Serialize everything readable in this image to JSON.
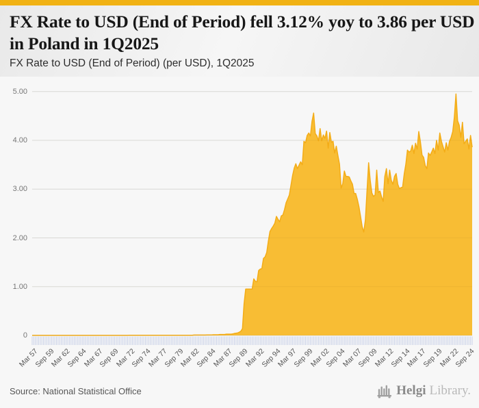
{
  "colors": {
    "brand_bar": "#F1B214"
  },
  "header": {
    "title": "FX Rate to USD (End of Period) fell 3.12% yoy to 3.86 per USD in Poland in 1Q2025",
    "subtitle": "FX Rate to USD (End of Period) (per USD), 1Q2025"
  },
  "chart_data": {
    "type": "area",
    "title": "FX Rate to USD (End of Period) (per USD), 1Q2025",
    "series_name": "FX Rate to USD (End of Period), Poland",
    "unit": "per USD",
    "frequency": "quarterly",
    "x_start": "Mar 57",
    "x_end": "Mar 25",
    "ylim": [
      0,
      5
    ],
    "grid": true,
    "legend_position": "none",
    "y_ticks": [
      0,
      1,
      2,
      3,
      4,
      5
    ],
    "y_ticklabels": [
      "0",
      "1.00",
      "2.00",
      "3.00",
      "4.00",
      "5.00"
    ],
    "label_every": 10,
    "x_ticklabels": [
      "Mar 57",
      "Sep 59",
      "Mar 62",
      "Sep 64",
      "Mar 67",
      "Sep 69",
      "Mar 72",
      "Sep 74",
      "Mar 77",
      "Sep 79",
      "Mar 82",
      "Sep 84",
      "Mar 87",
      "Sep 89",
      "Mar 92",
      "Sep 94",
      "Mar 97",
      "Sep 99",
      "Mar 02",
      "Sep 04",
      "Mar 07",
      "Sep 09",
      "Mar 12",
      "Sep 14",
      "Mar 17",
      "Sep 19",
      "Mar 22",
      "Sep 24"
    ],
    "values": [
      0.0024,
      0.0024,
      0.0024,
      0.0024,
      0.0024,
      0.0024,
      0.0024,
      0.0024,
      0.0024,
      0.0024,
      0.0024,
      0.0024,
      0.0024,
      0.0024,
      0.0024,
      0.0024,
      0.0024,
      0.0024,
      0.0024,
      0.0024,
      0.0024,
      0.0024,
      0.0024,
      0.0024,
      0.0024,
      0.0024,
      0.0024,
      0.0024,
      0.0024,
      0.0024,
      0.0024,
      0.0024,
      0.0024,
      0.0024,
      0.0024,
      0.0024,
      0.0024,
      0.0024,
      0.0024,
      0.0024,
      0.0024,
      0.0024,
      0.0024,
      0.0024,
      0.0024,
      0.0024,
      0.0024,
      0.0024,
      0.0024,
      0.0024,
      0.0024,
      0.0024,
      0.0024,
      0.0024,
      0.0024,
      0.0024,
      0.0025,
      0.0025,
      0.0025,
      0.0025,
      0.0027,
      0.0027,
      0.0027,
      0.0027,
      0.0033,
      0.0033,
      0.0033,
      0.0033,
      0.0033,
      0.0033,
      0.0033,
      0.0033,
      0.0033,
      0.0033,
      0.0033,
      0.0033,
      0.0033,
      0.0033,
      0.0033,
      0.0033,
      0.0032,
      0.0032,
      0.0032,
      0.0032,
      0.003,
      0.003,
      0.003,
      0.003,
      0.003,
      0.003,
      0.003,
      0.003,
      0.003,
      0.003,
      0.003,
      0.003,
      0.0034,
      0.0034,
      0.0034,
      0.0034,
      0.008,
      0.008,
      0.008,
      0.008,
      0.0091,
      0.0091,
      0.0091,
      0.0091,
      0.0113,
      0.0113,
      0.0113,
      0.0113,
      0.0147,
      0.0147,
      0.0147,
      0.0147,
      0.0198,
      0.0198,
      0.0198,
      0.0198,
      0.0265,
      0.0265,
      0.0265,
      0.0265,
      0.031,
      0.04,
      0.045,
      0.0503,
      0.066,
      0.085,
      0.14,
      0.65,
      0.95,
      0.95,
      0.95,
      0.95,
      0.95,
      1.16,
      1.11,
      1.1,
      1.33,
      1.36,
      1.37,
      1.58,
      1.61,
      1.7,
      1.93,
      2.13,
      2.19,
      2.24,
      2.3,
      2.44,
      2.38,
      2.33,
      2.45,
      2.47,
      2.58,
      2.72,
      2.8,
      2.88,
      3.08,
      3.28,
      3.43,
      3.52,
      3.42,
      3.49,
      3.56,
      3.5,
      3.98,
      3.95,
      4.1,
      4.15,
      4.09,
      4.39,
      4.56,
      4.14,
      4.09,
      3.99,
      4.24,
      3.99,
      4.11,
      4.04,
      4.19,
      3.84,
      4.16,
      3.96,
      3.98,
      3.74,
      3.88,
      3.69,
      3.51,
      3.02,
      3.11,
      3.37,
      3.26,
      3.26,
      3.25,
      3.17,
      3.1,
      2.91,
      2.91,
      2.79,
      2.64,
      2.44,
      2.23,
      2.12,
      2.37,
      2.96,
      3.54,
      3.17,
      2.92,
      2.85,
      2.88,
      3.39,
      2.93,
      2.96,
      2.84,
      2.75,
      3.26,
      3.42,
      3.11,
      3.39,
      3.18,
      3.1,
      3.26,
      3.32,
      3.1,
      3.01,
      3.03,
      3.04,
      3.31,
      3.51,
      3.8,
      3.76,
      3.78,
      3.9,
      3.73,
      3.94,
      3.82,
      4.18,
      3.97,
      3.7,
      3.65,
      3.48,
      3.42,
      3.74,
      3.69,
      3.76,
      3.84,
      3.73,
      4.0,
      3.8,
      4.15,
      3.98,
      3.87,
      3.76,
      3.95,
      3.8,
      3.98,
      4.06,
      4.18,
      4.48,
      4.95,
      4.4,
      4.31,
      4.06,
      4.37,
      3.93,
      3.98,
      4.03,
      3.82,
      4.1,
      3.86
    ],
    "last_value": 3.86,
    "yoy_change_pct": -3.12,
    "colors": {
      "area_fill": "#F8BD34",
      "area_stroke": "#F3AC17",
      "grid": "#e2e2e2",
      "tick": "#c9d1e8",
      "y_label": "#767676",
      "x_label": "#555555"
    }
  },
  "footer": {
    "source": "Source: National Statistical Office",
    "brand_bold": "Helgi",
    "brand_light": "Library."
  }
}
